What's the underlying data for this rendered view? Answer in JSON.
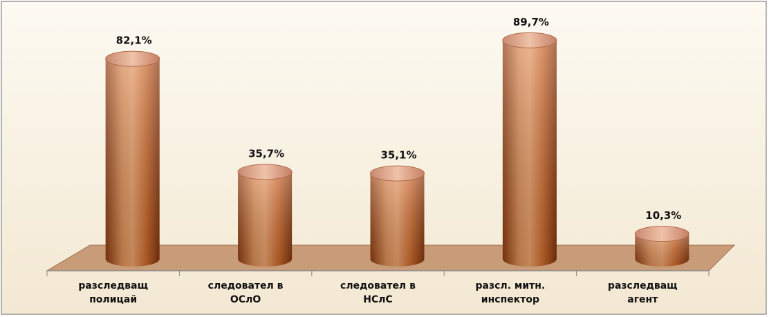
{
  "chart_data": {
    "type": "bar",
    "categories": [
      [
        "разследващ",
        "полицай"
      ],
      [
        "следовател в",
        "ОСлО"
      ],
      [
        "следовател в",
        "НСлС"
      ],
      [
        "разсл. митн.",
        "инспектор"
      ],
      [
        "разследващ",
        "агент"
      ]
    ],
    "values": [
      82.1,
      35.7,
      35.1,
      89.7,
      10.3
    ],
    "value_labels": [
      "82,1%",
      "35,7%",
      "35,1%",
      "89,7%",
      "10,3%"
    ],
    "color": "#c8743c"
  }
}
